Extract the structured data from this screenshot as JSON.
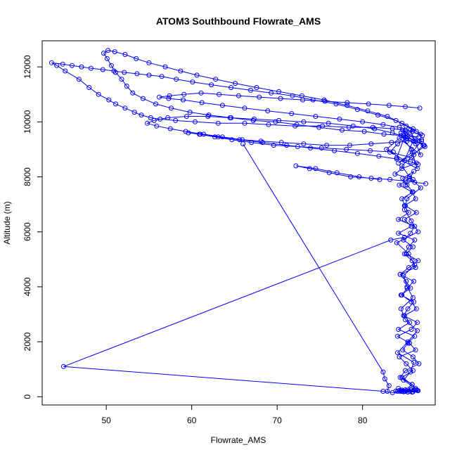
{
  "chart_data": {
    "type": "line",
    "title": "ATOM3 Southbound Flowrate_AMS",
    "xlabel": "Flowrate_AMS",
    "ylabel": "Altitude (m)",
    "xlim": [
      42.5,
      88.5
    ],
    "ylim": [
      -300,
      12950
    ],
    "xticks": [
      50,
      60,
      70,
      80
    ],
    "yticks": [
      0,
      2000,
      4000,
      6000,
      8000,
      10000,
      12000
    ],
    "grid": false,
    "style": {
      "color": "#0000ff",
      "markers": "open-circle",
      "lines": true
    },
    "series": [
      {
        "x": [
          85.0,
          85.8,
          84.6,
          85.9,
          85.1,
          84.3,
          86.2,
          85.5,
          84.1,
          85.7,
          86.4,
          84.8,
          85.3,
          86.0,
          84.5,
          85.6,
          85.1,
          84.4,
          86.2,
          85.8,
          84.9,
          85.4,
          86.1,
          84.2,
          85.7,
          84.9,
          86.3,
          85.0,
          84.6,
          85.9,
          85.2,
          84.7,
          86.0,
          85.5,
          84.3,
          85.8,
          86.2,
          84.9,
          85.4,
          84.2,
          86.1,
          85.6,
          84.8,
          85.9,
          85.1,
          86.5,
          85.4,
          84.4,
          86.0,
          85.2,
          84.6,
          85.7,
          86.3,
          84.9,
          85.5,
          84.2,
          86.1,
          85.3,
          84.7,
          85.9,
          86.6,
          85.0,
          84.4,
          85.8,
          86.2,
          84.8,
          85.6,
          86.0,
          84.1,
          85.3,
          86.4,
          85.0,
          84.5,
          85.9,
          85.2,
          84.8,
          86.1,
          85.4,
          84.0,
          86.5,
          85.7,
          84.9,
          85.2,
          86.8,
          85.5,
          84.6,
          86.0,
          87.1,
          85.3,
          84.7,
          86.9,
          85.8,
          84.2,
          87.3,
          85.1,
          84.0,
          86.4,
          85.7,
          84.5,
          86.2,
          85.6,
          86.8,
          84.3,
          82.8,
          84.9,
          85.9
        ],
        "y": [
          250,
          450,
          700,
          950,
          1200,
          1450,
          1700,
          1950,
          2200,
          2450,
          2700,
          2950,
          3200,
          3450,
          3700,
          3950,
          4200,
          4450,
          4700,
          4950,
          5200,
          5450,
          5700,
          5950,
          6200,
          6450,
          6700,
          6950,
          7200,
          7450,
          7700,
          7950,
          8200,
          7950,
          7700,
          7450,
          7200,
          6950,
          6700,
          6450,
          6200,
          5950,
          5700,
          5450,
          5200,
          4950,
          4700,
          4450,
          4200,
          3950,
          3700,
          3450,
          3200,
          2950,
          2700,
          2450,
          2200,
          1950,
          1700,
          1450,
          1200,
          950,
          700,
          450,
          300,
          600,
          900,
          1250,
          1600,
          2000,
          2400,
          2800,
          3200,
          3600,
          4000,
          4400,
          4800,
          5200,
          5600,
          6000,
          6400,
          6800,
          7200,
          7600,
          8000,
          8400,
          8800,
          9150,
          9450,
          9700,
          9300,
          8900,
          8500,
          9100,
          9600,
          8700,
          8300,
          9000,
          9500,
          9200,
          9700,
          8800,
          9400,
          9000,
          8600,
          9300
        ]
      },
      {
        "x": [
          85.0,
          83.5,
          81.2,
          78.4,
          75.3,
          72.1,
          69.0,
          66.2,
          63.1,
          60.4,
          58.1,
          56.3,
          55.2,
          54.1,
          53.3,
          52.2,
          51.1,
          50.3,
          49.1,
          48.0,
          46.8,
          45.2,
          44.2,
          43.6,
          44.9,
          46.0,
          47.1,
          48.2,
          49.6,
          50.9,
          52.1,
          53.6,
          55.0,
          56.5,
          58.2,
          60.1,
          62.3,
          64.6,
          66.9,
          69.3,
          71.8,
          74.2,
          76.9,
          79.4,
          81.8,
          83.9,
          85.1,
          86.3
        ],
        "y": [
          9700,
          9750,
          9800,
          9800,
          9850,
          9850,
          9900,
          9950,
          9950,
          10000,
          10050,
          10100,
          10150,
          10250,
          10350,
          10500,
          10650,
          10800,
          11000,
          11250,
          11550,
          11850,
          12050,
          12150,
          12100,
          12050,
          12000,
          11950,
          11900,
          11850,
          11800,
          11750,
          11700,
          11650,
          11550,
          11450,
          11350,
          11250,
          11150,
          11050,
          10950,
          10800,
          10650,
          10450,
          10250,
          10050,
          9850,
          9650
        ]
      },
      {
        "x": [
          86.6,
          84.8,
          82.5,
          80.2,
          77.6,
          74.9,
          72.3,
          69.8,
          67.2,
          64.6,
          62.0,
          59.8,
          57.6,
          55.8,
          54.3,
          53.1,
          52.4,
          51.8,
          51.1,
          50.6,
          50.1,
          49.7,
          50.2,
          51.0,
          52.2,
          53.5,
          55.0,
          56.9,
          58.7,
          60.6,
          62.8,
          65.1,
          67.6,
          70.2,
          72.9,
          75.5,
          78.2,
          80.6,
          82.9,
          84.6,
          85.9,
          86.8
        ],
        "y": [
          9450,
          9500,
          9550,
          9650,
          9700,
          9800,
          9900,
          10000,
          10050,
          10150,
          10250,
          10350,
          10500,
          10650,
          10850,
          11050,
          11300,
          11550,
          11800,
          12050,
          12300,
          12500,
          12600,
          12550,
          12450,
          12300,
          12150,
          12000,
          11850,
          11700,
          11550,
          11400,
          11250,
          11100,
          10950,
          10800,
          10600,
          10400,
          10200,
          9950,
          9750,
          9550
        ]
      },
      {
        "x": [
          86.9,
          85.2,
          83.4,
          81.0,
          78.5,
          75.8,
          73.1,
          70.5,
          68.1,
          65.9,
          63.6,
          61.4,
          59.3,
          57.5,
          55.9,
          54.8,
          55.6,
          57.2,
          59.4,
          61.9,
          64.5,
          67.3,
          70.2,
          73.1,
          76.0,
          78.9,
          81.4,
          83.5,
          85.0,
          86.2,
          87.2
        ],
        "y": [
          9350,
          9300,
          9250,
          9200,
          9150,
          9150,
          9200,
          9250,
          9300,
          9350,
          9450,
          9550,
          9650,
          9750,
          9850,
          9950,
          10050,
          10150,
          10200,
          10200,
          10150,
          10100,
          10050,
          10000,
          9950,
          9850,
          9750,
          9600,
          9450,
          9300,
          9150
        ]
      },
      {
        "x": [
          86.7,
          85.0,
          83.1,
          80.7,
          78.2,
          75.6,
          73.0,
          70.4,
          67.9,
          65.5,
          63.2,
          61.1,
          59.1,
          57.4,
          56.2,
          57.3,
          59.0,
          61.2,
          63.6,
          66.2,
          68.9,
          71.7,
          74.5,
          77.3,
          80.0,
          82.4,
          84.3,
          85.8,
          87.0
        ],
        "y": [
          10500,
          10550,
          10600,
          10650,
          10700,
          10750,
          10800,
          10850,
          10900,
          10950,
          11000,
          11050,
          11000,
          10950,
          10900,
          10850,
          10800,
          10700,
          10600,
          10500,
          10400,
          10300,
          10200,
          10100,
          10000,
          9900,
          9800,
          9650,
          9500
        ]
      },
      {
        "x": [
          83.6,
          80.9,
          78.1,
          75.2,
          72.4,
          69.6,
          67.0,
          64.7,
          62.7,
          60.9,
          59.6,
          61.0,
          63.1,
          65.6,
          68.3,
          71.1,
          73.9,
          76.7,
          79.4,
          81.9,
          84.0,
          85.6,
          86.5
        ],
        "y": [
          8900,
          8950,
          9000,
          9050,
          9100,
          9150,
          9250,
          9350,
          9450,
          9550,
          9600,
          9550,
          9450,
          9350,
          9250,
          9150,
          9050,
          8950,
          8850,
          8750,
          8650,
          8550,
          8450
        ]
      },
      {
        "x": [
          82.0,
          79.6,
          77.0,
          74.5,
          72.2,
          73.8,
          76.1,
          78.6,
          81.0,
          83.2,
          85.0,
          86.1,
          87.4
        ],
        "y": [
          7900,
          8000,
          8150,
          8300,
          8400,
          8300,
          8150,
          8000,
          7950,
          7900,
          7850,
          7800,
          7750
        ]
      },
      {
        "x": [
          84.5,
          85.2,
          84.1,
          83.2,
          85.7,
          86.3,
          84.6,
          83.8,
          85.9,
          85.0
        ],
        "y": [
          9600,
          9400,
          9200,
          8900,
          8700,
          8500,
          8300,
          8100,
          7900,
          7700
        ]
      },
      {
        "x": [
          66.0,
          82.4,
          82.6,
          83.1,
          82.9
        ],
        "y": [
          9200,
          900,
          650,
          400,
          200
        ]
      },
      {
        "x": [
          84.9,
          83.3,
          45.0,
          82.4,
          83.5,
          84.6,
          85.7
        ],
        "y": [
          5800,
          5700,
          1100,
          200,
          150,
          200,
          250
        ]
      },
      {
        "x": [
          84.2,
          85.5,
          86.3,
          84.8,
          85.1,
          86.0,
          84.4,
          83.9,
          85.3,
          86.4,
          85.6,
          84.1,
          85.9,
          84.7,
          86.2,
          85.0,
          84.3,
          85.8,
          86.5,
          84.6
        ],
        "y": [
          300,
          200,
          250,
          180,
          220,
          240,
          190,
          210,
          170,
          230,
          260,
          200,
          180,
          210,
          250,
          190,
          230,
          170,
          220,
          240
        ]
      }
    ]
  }
}
